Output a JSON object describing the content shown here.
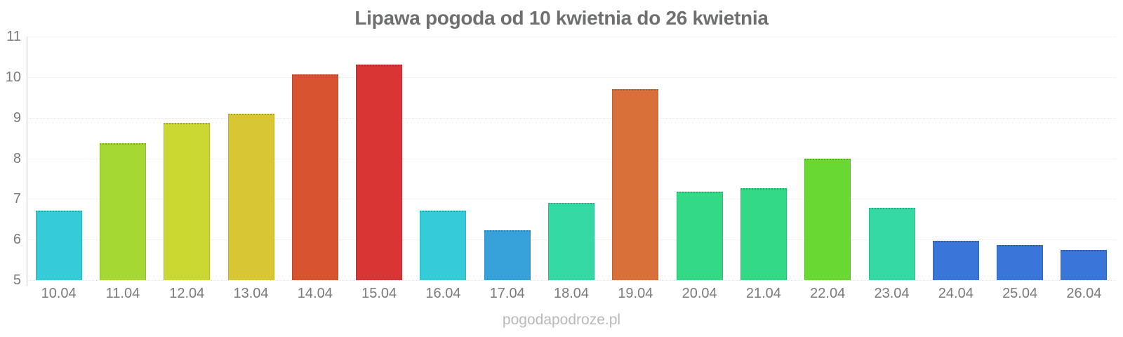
{
  "title": "Lipawa pogoda od 10 kwietnia do 26 kwietnia",
  "watermark": "pogodapodroze.pl",
  "colors": {
    "background": "#ffffff",
    "title_text": "#6e6f71",
    "axis_labels": "#7b7b7b",
    "gridline": "#e7e7e7",
    "axis_line": "#c9c9c9",
    "watermark": "#b9b9b9"
  },
  "chart_data": {
    "type": "bar",
    "title": "Lipawa pogoda od 10 kwietnia do 26 kwietnia",
    "xlabel": "",
    "ylabel": "",
    "ylim": [
      5,
      11
    ],
    "yticks": [
      11,
      10,
      9,
      8,
      7,
      6,
      5
    ],
    "grid": true,
    "legend": false,
    "categories": [
      "10.04",
      "11.04",
      "12.04",
      "13.04",
      "14.04",
      "15.04",
      "16.04",
      "17.04",
      "18.04",
      "19.04",
      "20.04",
      "21.04",
      "22.04",
      "23.04",
      "24.04",
      "25.04",
      "26.04"
    ],
    "values": [
      6.72,
      8.38,
      8.87,
      9.1,
      10.07,
      10.3,
      6.71,
      6.23,
      6.9,
      9.7,
      7.18,
      7.27,
      8.0,
      6.78,
      5.96,
      5.87,
      5.74
    ],
    "bar_colors": [
      "#35ccd9",
      "#a5d832",
      "#ccd832",
      "#d8c733",
      "#d85330",
      "#d93534",
      "#35ccd9",
      "#36a2d9",
      "#34d9a4",
      "#d9703a",
      "#33d985",
      "#33d985",
      "#6ad832",
      "#34d9a4",
      "#3a76d9",
      "#3a76d9",
      "#3a76d9"
    ]
  }
}
